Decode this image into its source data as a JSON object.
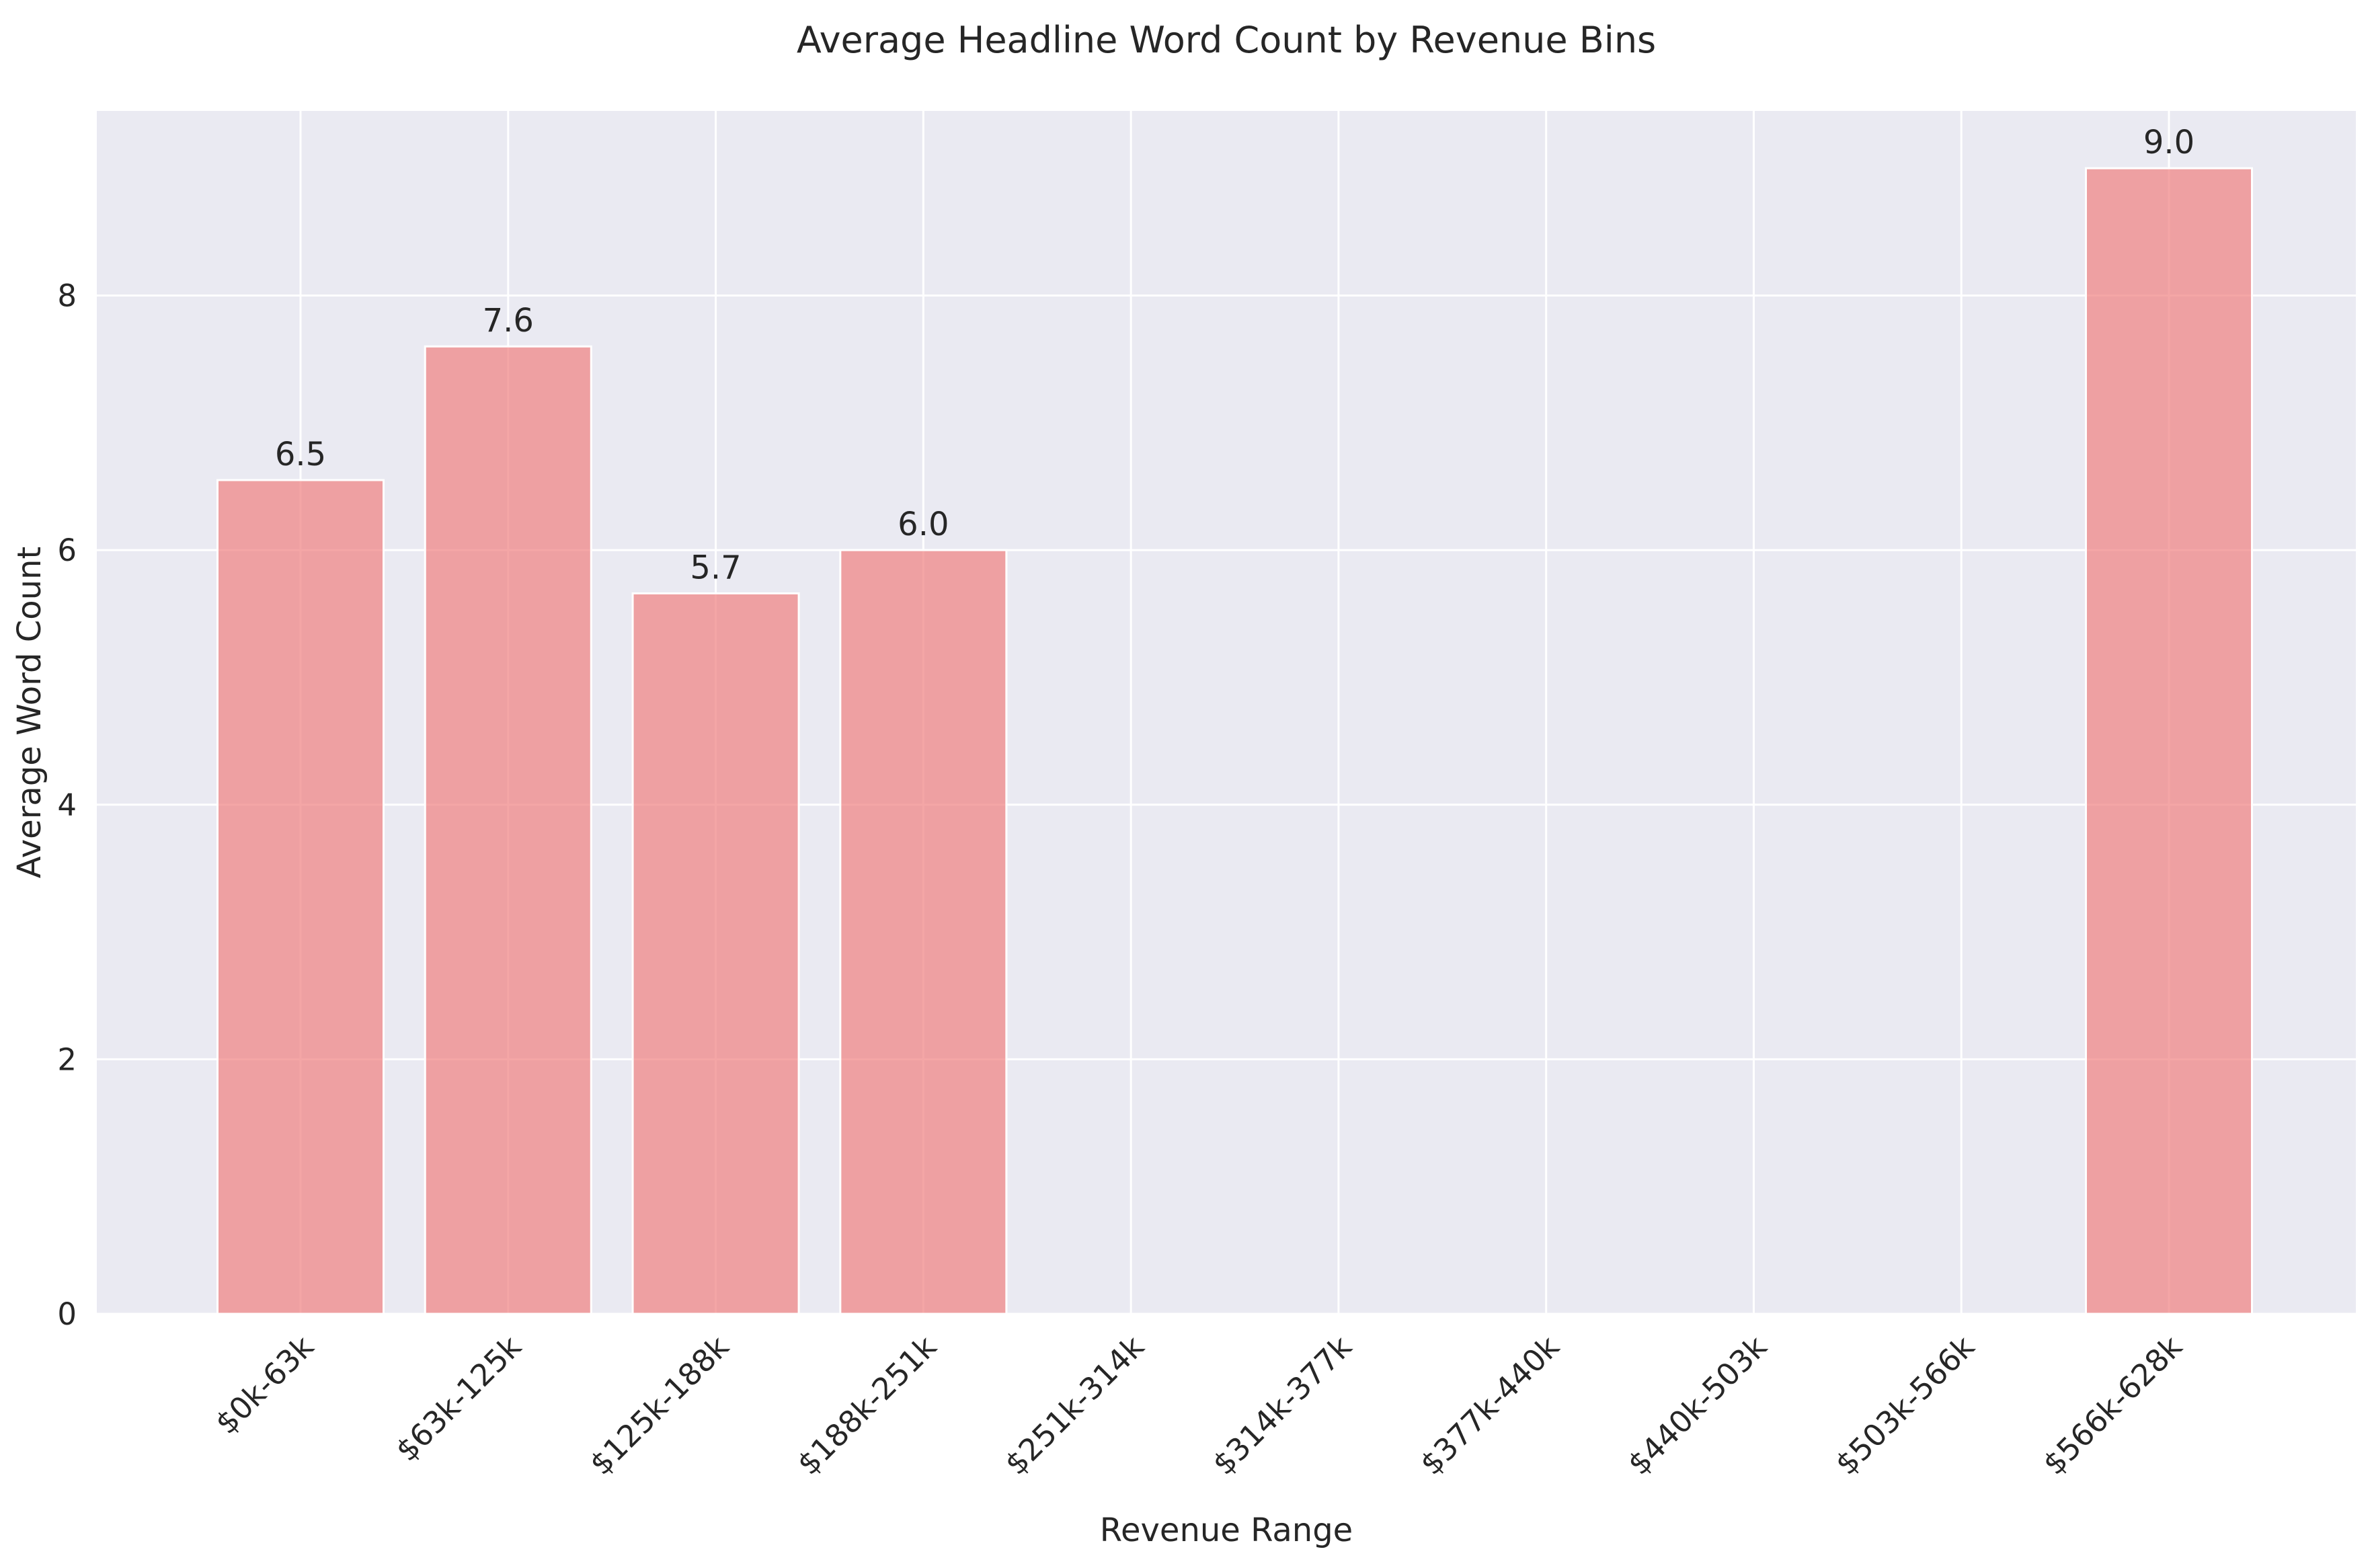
{
  "chart_data": {
    "type": "bar",
    "title": "Average Headline Word Count by Revenue Bins",
    "xlabel": "Revenue Range",
    "ylabel": "Average Word Count",
    "categories": [
      "$0k-63k",
      "$63k-125k",
      "$125k-188k",
      "$188k-251k",
      "$251k-314k",
      "$314k-377k",
      "$377k-440k",
      "$440k-503k",
      "$503k-566k",
      "$566k-628k"
    ],
    "values": [
      6.55,
      7.6,
      5.66,
      6.0,
      null,
      null,
      null,
      null,
      null,
      9.0
    ],
    "data_labels": [
      "6.5",
      "7.6",
      "5.7",
      "6.0",
      "",
      "",
      "",
      "",
      "",
      "9.0"
    ],
    "yticks": [
      0,
      2,
      4,
      6,
      8
    ],
    "ylim": [
      0,
      9.45
    ],
    "grid": true,
    "colors": {
      "bar": "#f08080",
      "background": "#eaeaf2",
      "grid": "#ffffff"
    }
  }
}
